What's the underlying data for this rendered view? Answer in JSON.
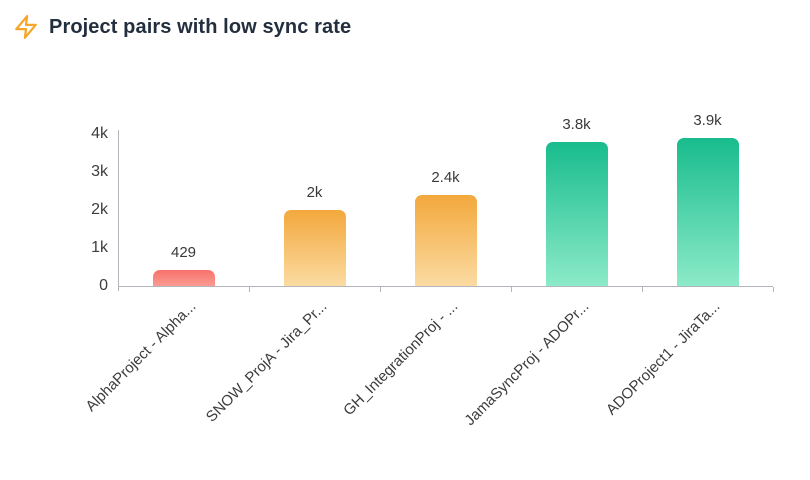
{
  "header": {
    "title": "Project pairs with low sync rate",
    "icon": "flash-icon",
    "icon_color": "#F7A62C",
    "title_color": "#232F3E"
  },
  "chart_data": {
    "type": "bar",
    "title": "Project pairs with low sync rate",
    "categories": [
      "AlphaProject - Alpha...",
      "SNOW_ProjA - Jira_Pr...",
      "GH_IntegrationProj - ...",
      "JamaSyncProj - ADOPr...",
      "ADOProject1 - JiraTa..."
    ],
    "values": [
      429,
      2000,
      2400,
      3800,
      3900
    ],
    "value_labels": [
      "429",
      "2k",
      "2.4k",
      "3.8k",
      "3.9k"
    ],
    "bar_colors": [
      {
        "top": "#F7726B",
        "bottom": "#FA9B92"
      },
      {
        "top": "#F3A83C",
        "bottom": "#FBDBA2"
      },
      {
        "top": "#F3A83C",
        "bottom": "#FBDBA2"
      },
      {
        "top": "#18BC8D",
        "bottom": "#8CEAC8"
      },
      {
        "top": "#18BC8D",
        "bottom": "#8CEAC8"
      }
    ],
    "xlabel": "",
    "ylabel": "",
    "ylim": [
      0,
      4000
    ],
    "yticks": [
      {
        "value": 0,
        "label": "0"
      },
      {
        "value": 1000,
        "label": "1k"
      },
      {
        "value": 2000,
        "label": "2k"
      },
      {
        "value": 3000,
        "label": "3k"
      },
      {
        "value": 4000,
        "label": "4k"
      }
    ],
    "grid": false,
    "legend": "none",
    "x_label_rotation": -45,
    "axis_color": "#B2B5BB",
    "label_color": "#3D3D3D"
  }
}
